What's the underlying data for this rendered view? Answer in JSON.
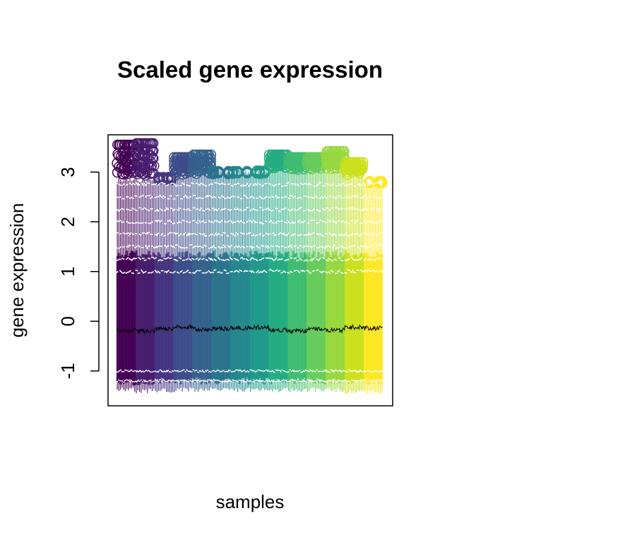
{
  "chart_data": {
    "type": "box",
    "title": "Scaled gene expression",
    "xlabel": "samples",
    "ylabel": "gene expression",
    "ylim": [
      -1.7,
      3.75
    ],
    "yticks": [
      -1,
      0,
      1,
      2,
      3
    ],
    "ytick_labels": [
      "-1",
      "0",
      "1",
      "2",
      "3"
    ],
    "x_tick_labels": [],
    "grid": false,
    "legend": "none",
    "palette": "viridis",
    "series": [
      {
        "color": "#440154",
        "whisker_low": -1.38,
        "q1": -1.22,
        "median": -0.18,
        "q3": 1.35,
        "whisker_high": 2.85,
        "outlier_max": 3.55,
        "mean_trace": -0.18
      },
      {
        "color": "#481C6E",
        "whisker_low": -1.4,
        "q1": -1.22,
        "median": -0.2,
        "q3": 1.35,
        "whisker_high": 2.85,
        "outlier_max": 3.58,
        "mean_trace": -0.2
      },
      {
        "color": "#453581",
        "whisker_low": -1.4,
        "q1": -1.2,
        "median": -0.15,
        "q3": 1.35,
        "whisker_high": 2.88,
        "outlier_max": 2.9,
        "mean_trace": -0.15
      },
      {
        "color": "#3D4D8A",
        "whisker_low": -1.38,
        "q1": -1.2,
        "median": -0.12,
        "q3": 1.35,
        "whisker_high": 2.92,
        "outlier_max": 3.3,
        "mean_trace": -0.12
      },
      {
        "color": "#34618D",
        "whisker_low": -1.38,
        "q1": -1.2,
        "median": -0.16,
        "q3": 1.35,
        "whisker_high": 2.93,
        "outlier_max": 3.35,
        "mean_trace": -0.16
      },
      {
        "color": "#2B748E",
        "whisker_low": -1.38,
        "q1": -1.2,
        "median": -0.15,
        "q3": 1.35,
        "whisker_high": 3.0,
        "outlier_max": 3.02,
        "mean_trace": -0.15
      },
      {
        "color": "#24878E",
        "whisker_low": -1.38,
        "q1": -1.2,
        "median": -0.14,
        "q3": 1.35,
        "whisker_high": 3.0,
        "outlier_max": 3.02,
        "mean_trace": -0.14
      },
      {
        "color": "#1F998A",
        "whisker_low": -1.38,
        "q1": -1.2,
        "median": -0.12,
        "q3": 1.35,
        "whisker_high": 3.0,
        "outlier_max": 3.03,
        "mean_trace": -0.12
      },
      {
        "color": "#25AC82",
        "whisker_low": -1.38,
        "q1": -1.2,
        "median": -0.18,
        "q3": 1.35,
        "whisker_high": 3.05,
        "outlier_max": 3.35,
        "mean_trace": -0.18
      },
      {
        "color": "#40BC72",
        "whisker_low": -1.38,
        "q1": -1.2,
        "median": -0.2,
        "q3": 1.35,
        "whisker_high": 3.05,
        "outlier_max": 3.3,
        "mean_trace": -0.2
      },
      {
        "color": "#67CC5C",
        "whisker_low": -1.38,
        "q1": -1.2,
        "median": -0.16,
        "q3": 1.35,
        "whisker_high": 3.05,
        "outlier_max": 3.3,
        "mean_trace": -0.16
      },
      {
        "color": "#97D83F",
        "whisker_low": -1.38,
        "q1": -1.2,
        "median": -0.18,
        "q3": 1.35,
        "whisker_high": 3.05,
        "outlier_max": 3.42,
        "mean_trace": -0.18
      },
      {
        "color": "#CBE11E",
        "whisker_low": -1.42,
        "q1": -1.22,
        "median": -0.12,
        "q3": 1.35,
        "whisker_high": 2.95,
        "outlier_max": 3.2,
        "mean_trace": -0.12
      },
      {
        "color": "#FDE725",
        "whisker_low": -1.42,
        "q1": -1.22,
        "median": -0.14,
        "q3": 1.35,
        "whisker_high": 2.8,
        "outlier_max": 2.82,
        "mean_trace": -0.14
      }
    ]
  }
}
